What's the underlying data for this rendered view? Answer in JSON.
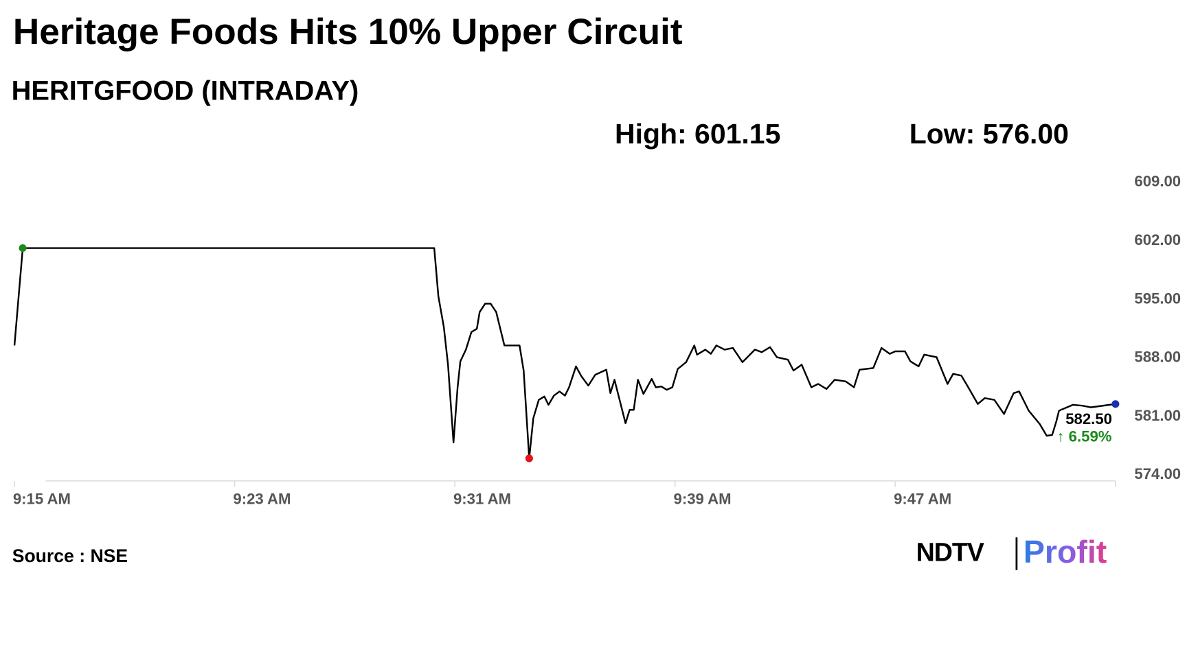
{
  "chart_data": {
    "type": "line",
    "title": "Heritage Foods Hits 10% Upper Circuit",
    "subtitle": "HERITGFOOD (INTRADAY)",
    "high_text": "High: 601.15",
    "low_text": "Low: 576.00",
    "last_label": "582.50",
    "change_label": "↑ 6.59%",
    "source": "Source : NSE",
    "logo_brand": "NDTV",
    "logo_product": "Profit",
    "color": "#000000",
    "high_color": "#1a8a1a",
    "low_color": "#e8121a",
    "last_color": "#1a2fb0",
    "change_color": "#1a8a1a",
    "x": [
      0,
      0.3,
      15.25,
      15.4,
      15.6,
      15.75,
      15.95,
      16.1,
      16.2,
      16.4,
      16.6,
      16.8,
      16.9,
      17.1,
      17.3,
      17.5,
      17.8,
      18.35,
      18.5,
      18.7,
      18.85,
      19.05,
      19.25,
      19.4,
      19.6,
      19.8,
      20,
      20.15,
      20.4,
      20.6,
      20.85,
      21.1,
      21.5,
      21.65,
      21.8,
      22.2,
      22.35,
      22.5,
      22.65,
      22.85,
      23.15,
      23.3,
      23.5,
      23.7,
      23.9,
      24.1,
      24.4,
      24.7,
      24.8,
      25.1,
      25.3,
      25.5,
      25.8,
      26.1,
      26.45,
      26.9,
      27.15,
      27.45,
      27.7,
      28.1,
      28.3,
      28.6,
      28.95,
      29.2,
      29.5,
      29.8,
      30.2,
      30.5,
      30.7,
      31.2,
      31.5,
      31.8,
      32,
      32.35,
      32.55,
      32.85,
      33.05,
      33.5,
      33.9,
      34.1,
      34.4,
      34.65,
      35,
      35.25,
      35.6,
      35.95,
      36.3,
      36.5,
      36.85,
      37.25,
      37.5,
      37.7,
      37.85,
      37.95,
      38.45,
      38.8,
      39.1,
      40
    ],
    "values": [
      589.5,
      601.15,
      601.15,
      595.4,
      591.7,
      587.2,
      577.9,
      584.5,
      587.6,
      589,
      591.1,
      591.5,
      593.5,
      594.5,
      594.5,
      593.5,
      589.5,
      589.5,
      586.5,
      576,
      580.8,
      583,
      583.4,
      582.4,
      583.5,
      584,
      583.5,
      584.5,
      587,
      585.8,
      584.7,
      586,
      586.6,
      583.8,
      585.4,
      580.2,
      581.8,
      581.8,
      585.4,
      583.7,
      585.5,
      584.5,
      584.6,
      584.2,
      584.5,
      586.7,
      587.5,
      589.5,
      588.4,
      589,
      588.5,
      589.5,
      589,
      589.2,
      587.5,
      589,
      588.7,
      589.3,
      588.1,
      587.8,
      586.5,
      587.2,
      584.5,
      584.9,
      584.3,
      585.4,
      585.2,
      584.5,
      586.6,
      586.8,
      589.2,
      588.5,
      588.8,
      588.8,
      587.6,
      587,
      588.4,
      588.1,
      584.9,
      586.1,
      585.9,
      584.5,
      582.5,
      583.2,
      583,
      581.3,
      583.8,
      584,
      581.7,
      580.1,
      578.7,
      578.8,
      580.4,
      581.7,
      582.4,
      582.3,
      582.1,
      582.5
    ],
    "xlim": [
      0,
      40
    ],
    "xticks": [
      {
        "value": 0,
        "label": "9:15 AM"
      },
      {
        "value": 8,
        "label": "9:23 AM"
      },
      {
        "value": 16,
        "label": "9:31 AM"
      },
      {
        "value": 24,
        "label": "9:39 AM"
      },
      {
        "value": 32,
        "label": "9:47 AM"
      }
    ],
    "ylim": [
      573.3,
      609
    ],
    "yticks": [
      {
        "value": 609,
        "label": "609.00"
      },
      {
        "value": 602,
        "label": "602.00"
      },
      {
        "value": 595,
        "label": "595.00"
      },
      {
        "value": 588,
        "label": "588.00"
      },
      {
        "value": 581,
        "label": "581.00"
      },
      {
        "value": 574,
        "label": "574.00"
      }
    ]
  }
}
